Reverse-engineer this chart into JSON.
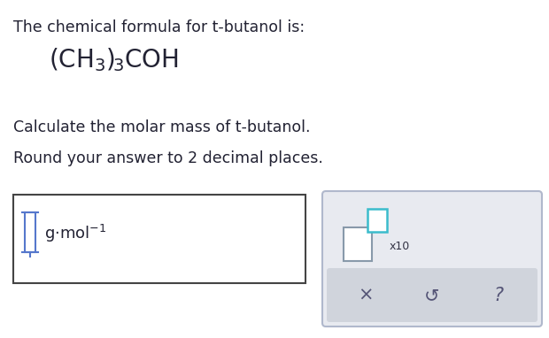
{
  "bg_color": "#ffffff",
  "text_color": "#1a1a2e",
  "dark_color": "#222233",
  "teal_color": "#4db8c8",
  "line1": "The chemical formula for t-butanol is:",
  "line3": "Calculate the molar mass of t-butanol.",
  "line4": "Round your answer to 2 decimal places.",
  "x10_text": "x10",
  "input_box_color": "#333355",
  "panel_bg": "#e8eaf0",
  "panel_border": "#b0b8cc",
  "grey_bar": "#d0d4dc",
  "icon_color": "#5577cc",
  "teal_sq_color": "#3bbccc"
}
